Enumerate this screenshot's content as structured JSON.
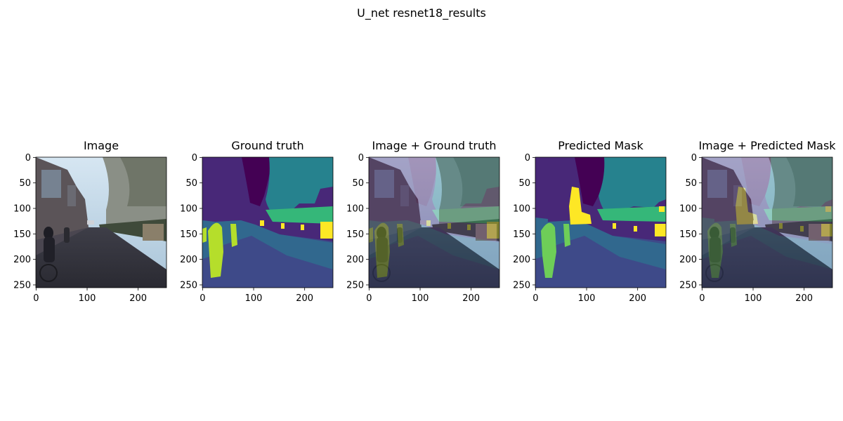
{
  "figure": {
    "title": "U_net resnet18_results"
  },
  "panels": [
    {
      "id": "image",
      "title": "Image",
      "content": "photo"
    },
    {
      "id": "gt",
      "title": "Ground truth",
      "content": "mask"
    },
    {
      "id": "img_gt",
      "title": "Image + Ground truth",
      "content": "overlay_gt"
    },
    {
      "id": "pred",
      "title": "Predicted Mask",
      "content": "pred"
    },
    {
      "id": "img_pred",
      "title": "Image + Predicted Mask",
      "content": "overlay_pred"
    }
  ],
  "axes": {
    "x_ticks": [
      "0",
      "100",
      "200"
    ],
    "y_ticks": [
      "0",
      "50",
      "100",
      "150",
      "200",
      "250"
    ]
  },
  "colors": {
    "dark_purple": "#440154",
    "purple": "#482878",
    "indigo": "#3e4a89",
    "blue": "#31688e",
    "teal": "#26828e",
    "green": "#35b779",
    "light_green": "#6ece58",
    "lime": "#b5de2b",
    "yellow": "#fde725"
  }
}
